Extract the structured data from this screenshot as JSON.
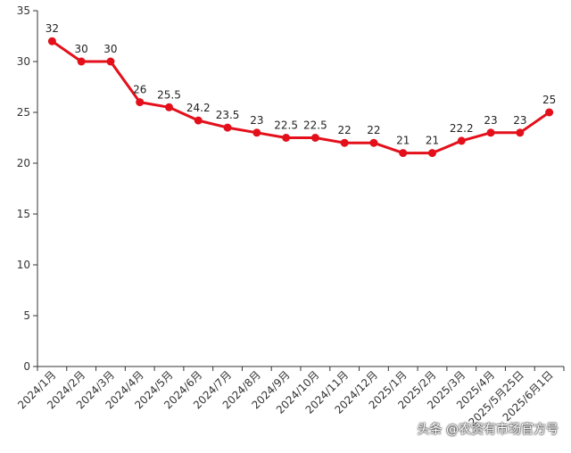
{
  "chart_data": {
    "type": "line",
    "title": "",
    "xlabel": "",
    "ylabel": "",
    "categories": [
      "2024/1月",
      "2024/2月",
      "2024/3月",
      "2024/4月",
      "2024/5月",
      "2024/6月",
      "2024/7月",
      "2024/8月",
      "2024/9月",
      "2024/10月",
      "2024/11月",
      "2024/12月",
      "2025/1月",
      "2025/2月",
      "2025/3月",
      "2025/4月",
      "2025/5月25日",
      "2025/6月1日"
    ],
    "series": [
      {
        "values": [
          32,
          30,
          30,
          26,
          25.5,
          24.2,
          23.5,
          23,
          22.5,
          22.5,
          22,
          22,
          21,
          21,
          22.2,
          23,
          23,
          25
        ]
      }
    ],
    "data_labels": [
      "32",
      "30",
      "30",
      "26",
      "25.5",
      "24.2",
      "23.5",
      "23",
      "22.5",
      "22.5",
      "22",
      "22",
      "21",
      "21",
      "22.2",
      "23",
      "23",
      "25"
    ],
    "ylim": [
      0,
      35
    ],
    "yticks": [
      0,
      5,
      10,
      15,
      20,
      25,
      30,
      35
    ],
    "grid": false,
    "legend": "none",
    "line_color": "#e3101b"
  },
  "watermark": "头条 @农资有市场官方号"
}
